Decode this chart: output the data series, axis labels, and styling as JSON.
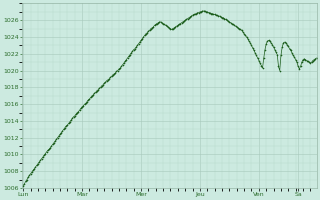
{
  "background_color": "#cceae0",
  "plot_bg_color": "#cceae0",
  "line_color": "#1a5c1a",
  "marker_color": "#1a5c1a",
  "grid_color_major": "#a8c8bc",
  "grid_color_minor": "#b8d8cc",
  "tick_label_color": "#2d6e2d",
  "ylim": [
    1006,
    1028
  ],
  "yticks": [
    1006,
    1008,
    1010,
    1012,
    1014,
    1016,
    1018,
    1020,
    1022,
    1024,
    1026
  ],
  "xlabels": [
    "Lun",
    "Mar",
    "Mer",
    "Jeu",
    "Ven",
    "Sa"
  ],
  "pressure_data": [
    1006.3,
    1006.5,
    1006.8,
    1007.0,
    1007.3,
    1007.5,
    1007.7,
    1007.9,
    1008.1,
    1008.3,
    1008.5,
    1008.7,
    1008.9,
    1009.1,
    1009.3,
    1009.5,
    1009.7,
    1009.9,
    1010.1,
    1010.3,
    1010.5,
    1010.6,
    1010.8,
    1011.0,
    1011.2,
    1011.4,
    1011.6,
    1011.8,
    1012.0,
    1012.2,
    1012.4,
    1012.6,
    1012.8,
    1013.0,
    1013.2,
    1013.4,
    1013.5,
    1013.7,
    1013.9,
    1014.1,
    1014.3,
    1014.5,
    1014.6,
    1014.8,
    1015.0,
    1015.1,
    1015.3,
    1015.5,
    1015.7,
    1015.8,
    1016.0,
    1016.1,
    1016.3,
    1016.5,
    1016.6,
    1016.8,
    1017.0,
    1017.1,
    1017.3,
    1017.4,
    1017.6,
    1017.7,
    1017.9,
    1018.0,
    1018.2,
    1018.3,
    1018.5,
    1018.6,
    1018.8,
    1018.9,
    1019.0,
    1019.2,
    1019.3,
    1019.5,
    1019.6,
    1019.7,
    1019.9,
    1020.0,
    1020.2,
    1020.3,
    1020.5,
    1020.7,
    1020.9,
    1021.1,
    1021.3,
    1021.5,
    1021.7,
    1021.9,
    1022.1,
    1022.3,
    1022.5,
    1022.6,
    1022.8,
    1023.0,
    1023.2,
    1023.4,
    1023.6,
    1023.8,
    1024.0,
    1024.2,
    1024.4,
    1024.5,
    1024.7,
    1024.8,
    1025.0,
    1025.1,
    1025.2,
    1025.4,
    1025.5,
    1025.6,
    1025.7,
    1025.8,
    1025.8,
    1025.7,
    1025.6,
    1025.5,
    1025.4,
    1025.3,
    1025.2,
    1025.1,
    1025.0,
    1024.9,
    1025.0,
    1025.1,
    1025.2,
    1025.3,
    1025.4,
    1025.5,
    1025.6,
    1025.7,
    1025.8,
    1025.9,
    1026.0,
    1026.1,
    1026.2,
    1026.3,
    1026.4,
    1026.5,
    1026.6,
    1026.7,
    1026.7,
    1026.8,
    1026.9,
    1026.9,
    1027.0,
    1027.0,
    1027.1,
    1027.1,
    1027.1,
    1027.0,
    1027.0,
    1026.9,
    1026.9,
    1026.8,
    1026.8,
    1026.7,
    1026.7,
    1026.6,
    1026.6,
    1026.5,
    1026.5,
    1026.4,
    1026.3,
    1026.3,
    1026.2,
    1026.1,
    1026.0,
    1025.9,
    1025.8,
    1025.7,
    1025.6,
    1025.5,
    1025.4,
    1025.3,
    1025.2,
    1025.1,
    1025.0,
    1024.9,
    1024.8,
    1024.6,
    1024.4,
    1024.2,
    1024.0,
    1023.8,
    1023.5,
    1023.3,
    1023.0,
    1022.7,
    1022.4,
    1022.1,
    1021.8,
    1021.5,
    1021.2,
    1020.9,
    1020.6,
    1020.3,
    1021.5,
    1022.5,
    1023.2,
    1023.5,
    1023.6,
    1023.5,
    1023.3,
    1023.1,
    1022.8,
    1022.5,
    1022.2,
    1021.9,
    1020.5,
    1020.0,
    1021.8,
    1022.8,
    1023.3,
    1023.4,
    1023.3,
    1023.1,
    1022.9,
    1022.6,
    1022.4,
    1022.1,
    1021.8,
    1021.6,
    1021.3,
    1021.0,
    1020.5,
    1020.2,
    1020.5,
    1021.0,
    1021.3,
    1021.4,
    1021.3,
    1021.2,
    1021.1,
    1021.0,
    1020.9,
    1021.0,
    1021.2,
    1021.3,
    1021.4,
    1021.5
  ]
}
